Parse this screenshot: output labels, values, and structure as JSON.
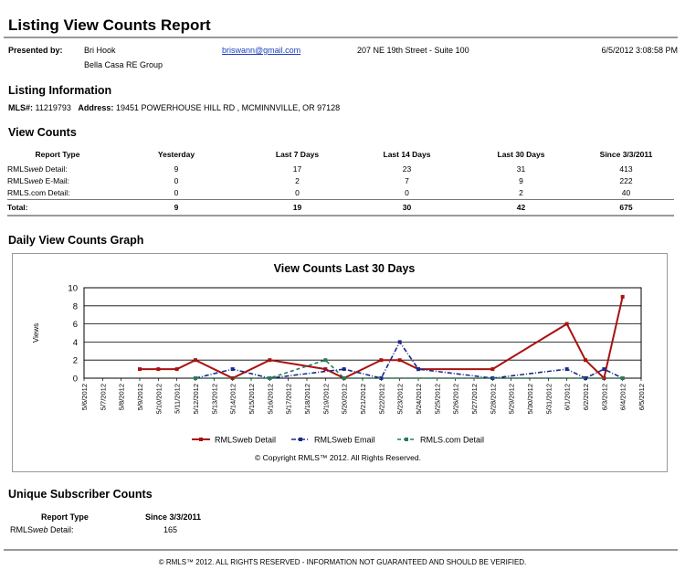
{
  "report": {
    "title": "Listing View Counts Report"
  },
  "presented": {
    "label": "Presented by:",
    "name": "Bri Hook",
    "company": "Bella Casa RE Group",
    "email": "briswann@gmail.com",
    "address": "207 NE 19th Street - Suite 100",
    "datetime": "6/5/2012 3:08:58 PM"
  },
  "listing": {
    "section_title": "Listing Information",
    "mls_label": "MLS#:",
    "mls_value": "11219793",
    "address_label": "Address:",
    "address_value": "19451 POWERHOUSE HILL RD , MCMINNVILLE, OR 97128"
  },
  "view_counts": {
    "section_title": "View Counts",
    "headers": [
      "Report Type",
      "Yesterday",
      "Last 7 Days",
      "Last 14 Days",
      "Last 30 Days",
      "Since 3/3/2011"
    ],
    "rows": [
      {
        "type_pre": "RMLS",
        "type_em": "web",
        "type_post": " Detail:",
        "values": [
          "9",
          "17",
          "23",
          "31",
          "413"
        ]
      },
      {
        "type_pre": "RMLS",
        "type_em": "web",
        "type_post": " E-Mail:",
        "values": [
          "0",
          "2",
          "7",
          "9",
          "222"
        ]
      },
      {
        "type_pre": "RMLS.com Detail:",
        "type_em": "",
        "type_post": "",
        "values": [
          "0",
          "0",
          "0",
          "2",
          "40"
        ]
      }
    ],
    "total": {
      "label": "Total:",
      "values": [
        "9",
        "19",
        "30",
        "42",
        "675"
      ]
    }
  },
  "graph": {
    "section_title": "Daily View Counts Graph",
    "copyright": "© Copyright RMLS™ 2012.  All Rights Reserved."
  },
  "chart_data": {
    "type": "line",
    "title": "View Counts Last 30 Days",
    "xlabel": "",
    "ylabel": "Views",
    "ylim": [
      0,
      10
    ],
    "yticks": [
      0,
      2,
      4,
      6,
      8,
      10
    ],
    "grid": true,
    "legend_position": "bottom",
    "x": [
      "5/6/2012",
      "5/7/2012",
      "5/8/2012",
      "5/9/2012",
      "5/10/2012",
      "5/11/2012",
      "5/12/2012",
      "5/13/2012",
      "5/14/2012",
      "5/15/2012",
      "5/16/2012",
      "5/17/2012",
      "5/18/2012",
      "5/19/2012",
      "5/20/2012",
      "5/21/2012",
      "5/22/2012",
      "5/23/2012",
      "5/24/2012",
      "5/25/2012",
      "5/26/2012",
      "5/27/2012",
      "5/28/2012",
      "5/29/2012",
      "5/30/2012",
      "5/31/2012",
      "6/1/2012",
      "6/2/2012",
      "6/3/2012",
      "6/4/2012",
      "6/5/2012"
    ],
    "series": [
      {
        "name": "RMLSweb Detail",
        "color": "#aa1111",
        "style": "solid",
        "points": [
          [
            3,
            1
          ],
          [
            4,
            1
          ],
          [
            5,
            1
          ],
          [
            6,
            2
          ],
          [
            8,
            0
          ],
          [
            10,
            2
          ],
          [
            13,
            1
          ],
          [
            14,
            0
          ],
          [
            16,
            2
          ],
          [
            17,
            2
          ],
          [
            18,
            1
          ],
          [
            22,
            1
          ],
          [
            26,
            6
          ],
          [
            27,
            2
          ],
          [
            28,
            0
          ],
          [
            29,
            9
          ]
        ]
      },
      {
        "name": "RMLSweb Email",
        "color": "#1a2a8a",
        "style": "dashdot",
        "points": [
          [
            6,
            0
          ],
          [
            8,
            1
          ],
          [
            10,
            0
          ],
          [
            14,
            1
          ],
          [
            16,
            0
          ],
          [
            17,
            4
          ],
          [
            18,
            1
          ],
          [
            22,
            0
          ],
          [
            26,
            1
          ],
          [
            27,
            0
          ],
          [
            28,
            1
          ],
          [
            29,
            0
          ]
        ]
      },
      {
        "name": "RMLS.com Detail",
        "color": "#2a7a5a",
        "style": "dashed",
        "points": [
          [
            6,
            0
          ],
          [
            10,
            0
          ],
          [
            13,
            2
          ],
          [
            14,
            0
          ],
          [
            29,
            0
          ]
        ]
      }
    ]
  },
  "subscriber": {
    "section_title": "Unique Subscriber Counts",
    "headers": [
      "Report Type",
      "Since 3/3/2011"
    ],
    "row": {
      "type_pre": "RMLS",
      "type_em": "web",
      "type_post": " Detail:",
      "value": "165"
    }
  },
  "footer": {
    "text": "© RMLS™ 2012. ALL RIGHTS RESERVED - INFORMATION NOT GUARANTEED AND SHOULD BE VERIFIED."
  }
}
